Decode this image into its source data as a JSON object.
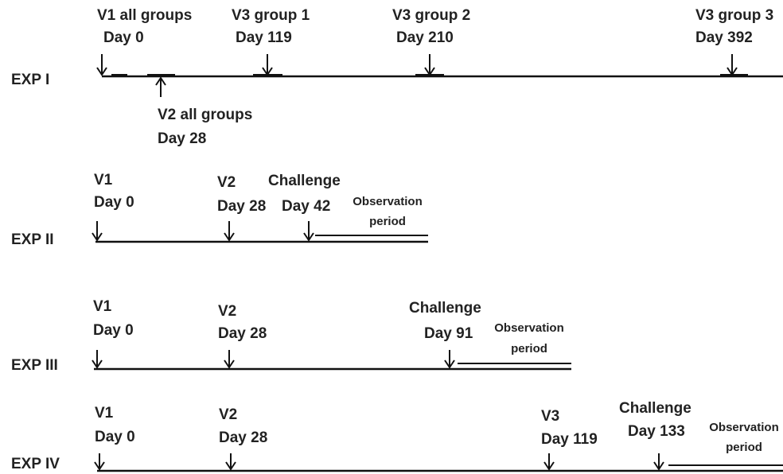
{
  "experiments": [
    {
      "label": "EXP I",
      "events": [
        {
          "lines": [
            "V1 all groups",
            "Day 0"
          ]
        },
        {
          "lines": [
            "V2 all groups",
            "Day 28"
          ]
        },
        {
          "lines": [
            "V3 group 1",
            "Day 119"
          ]
        },
        {
          "lines": [
            "V3 group 2",
            "Day 210"
          ]
        },
        {
          "lines": [
            "V3 group 3",
            "Day 392"
          ]
        }
      ]
    },
    {
      "label": "EXP II",
      "events": [
        {
          "lines": [
            "V1",
            "Day 0"
          ]
        },
        {
          "lines": [
            "V2",
            "Day 28"
          ]
        },
        {
          "lines": [
            "Challenge",
            "Day 42"
          ]
        }
      ],
      "observation": {
        "lines": [
          "Observation",
          "period"
        ]
      }
    },
    {
      "label": "EXP III",
      "events": [
        {
          "lines": [
            "V1",
            "Day 0"
          ]
        },
        {
          "lines": [
            "V2",
            "Day 28"
          ]
        },
        {
          "lines": [
            "Challenge",
            "Day 91"
          ]
        }
      ],
      "observation": {
        "lines": [
          "Observation",
          "period"
        ]
      }
    },
    {
      "label": "EXP IV",
      "events": [
        {
          "lines": [
            "V1",
            "Day 0"
          ]
        },
        {
          "lines": [
            "V2",
            "Day 28"
          ]
        },
        {
          "lines": [
            "V3",
            "Day 119"
          ]
        },
        {
          "lines": [
            "Challenge",
            "Day 133"
          ]
        }
      ],
      "observation": {
        "lines": [
          "Observation",
          "period"
        ]
      }
    }
  ]
}
